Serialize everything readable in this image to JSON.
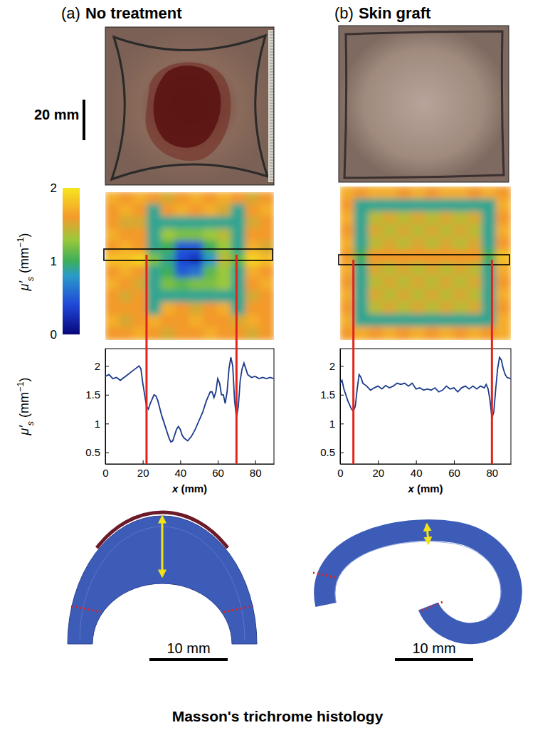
{
  "panels": [
    {
      "label": "(a)",
      "title": "No treatment"
    },
    {
      "label": "(b)",
      "title": "Skin graft"
    }
  ],
  "photo_scale_bar": "20 mm",
  "colorbar": {
    "label": {
      "symbol": "μ′",
      "sub": "s",
      "unit": " (mm",
      "sup": "−1",
      "end": ")"
    },
    "range": [
      0,
      2
    ],
    "ticks": [
      0,
      1,
      2
    ]
  },
  "heatmaps": [
    {
      "cells": [
        [
          1.7,
          1.6,
          1.7,
          1.6,
          1.5,
          1.6,
          1.7,
          1.6,
          1.7,
          1.6,
          1.5,
          1.6
        ],
        [
          1.6,
          1.7,
          1.6,
          0.9,
          1.6,
          1.7,
          1.6,
          1.7,
          1.5,
          0.9,
          1.6,
          1.7
        ],
        [
          1.6,
          1.5,
          1.5,
          0.9,
          0.9,
          0.9,
          0.9,
          0.9,
          0.9,
          0.9,
          1.5,
          1.6
        ],
        [
          1.7,
          1.6,
          1.6,
          0.9,
          1.3,
          1.2,
          1.2,
          1.3,
          1.4,
          0.9,
          1.6,
          1.6
        ],
        [
          1.6,
          1.7,
          1.6,
          0.9,
          1.0,
          0.5,
          0.5,
          1.0,
          1.3,
          0.9,
          1.7,
          1.5
        ],
        [
          1.8,
          1.8,
          1.9,
          1.2,
          0.9,
          0.4,
          0.3,
          0.8,
          1.4,
          1.1,
          1.9,
          1.8
        ],
        [
          1.6,
          1.7,
          1.6,
          0.9,
          1.0,
          0.5,
          0.6,
          1.1,
          1.3,
          0.9,
          1.7,
          1.6
        ],
        [
          1.7,
          1.6,
          1.5,
          0.9,
          1.2,
          1.1,
          1.2,
          1.2,
          1.3,
          0.9,
          1.6,
          1.7
        ],
        [
          1.6,
          1.5,
          1.6,
          0.9,
          0.9,
          0.9,
          0.9,
          0.9,
          0.9,
          0.9,
          1.5,
          1.6
        ],
        [
          1.6,
          1.6,
          1.6,
          0.9,
          1.7,
          1.6,
          1.5,
          1.6,
          1.7,
          0.9,
          1.6,
          1.6
        ],
        [
          1.7,
          1.5,
          1.6,
          1.7,
          1.6,
          1.6,
          1.7,
          1.6,
          1.6,
          1.5,
          1.7,
          1.6
        ],
        [
          1.6,
          1.6,
          1.7,
          1.6,
          1.5,
          1.6,
          1.6,
          1.7,
          1.6,
          1.6,
          1.5,
          1.6
        ]
      ]
    },
    {
      "cells": [
        [
          1.7,
          1.6,
          1.7,
          1.7,
          1.6,
          1.7,
          1.6,
          1.7,
          1.7,
          1.6,
          1.7,
          1.6
        ],
        [
          1.6,
          0.9,
          0.9,
          0.9,
          0.9,
          0.9,
          0.9,
          0.9,
          0.9,
          0.9,
          0.9,
          1.7
        ],
        [
          1.7,
          0.9,
          1.4,
          1.5,
          1.4,
          1.5,
          1.4,
          1.5,
          1.4,
          1.5,
          0.9,
          1.6
        ],
        [
          1.6,
          0.9,
          1.5,
          1.4,
          1.5,
          1.4,
          1.5,
          1.4,
          1.5,
          1.4,
          0.9,
          1.7
        ],
        [
          1.7,
          0.9,
          1.4,
          1.5,
          1.4,
          1.5,
          1.4,
          1.5,
          1.4,
          1.5,
          0.9,
          1.6
        ],
        [
          1.6,
          1.0,
          1.6,
          1.6,
          1.6,
          1.6,
          1.6,
          1.6,
          1.6,
          1.6,
          1.0,
          1.8
        ],
        [
          1.7,
          0.9,
          1.5,
          1.4,
          1.5,
          1.4,
          1.5,
          1.4,
          1.5,
          1.4,
          0.9,
          1.7
        ],
        [
          1.6,
          0.9,
          1.4,
          1.5,
          1.4,
          1.5,
          1.4,
          1.5,
          1.4,
          1.5,
          0.9,
          1.6
        ],
        [
          1.7,
          0.9,
          1.5,
          1.4,
          1.5,
          1.4,
          1.5,
          1.4,
          1.5,
          1.4,
          0.9,
          1.7
        ],
        [
          1.6,
          0.9,
          1.4,
          1.5,
          1.4,
          1.5,
          1.4,
          1.5,
          1.4,
          1.5,
          0.9,
          1.6
        ],
        [
          1.7,
          0.9,
          0.9,
          0.9,
          0.9,
          0.9,
          0.9,
          0.9,
          0.9,
          0.9,
          0.9,
          1.7
        ],
        [
          1.6,
          1.7,
          1.6,
          1.7,
          1.6,
          1.7,
          1.6,
          1.7,
          1.6,
          1.7,
          1.6,
          1.7
        ]
      ]
    }
  ],
  "chart_data": [
    {
      "type": "line",
      "x": [
        0,
        2,
        4,
        6,
        8,
        10,
        12,
        14,
        16,
        18,
        19,
        20,
        22,
        23,
        24,
        26,
        27,
        28,
        30,
        32,
        33,
        34,
        35,
        36,
        37,
        38,
        39,
        40,
        41,
        42,
        44,
        46,
        48,
        50,
        52,
        54,
        56,
        57,
        58,
        59,
        60,
        61,
        62,
        63,
        64,
        65,
        66,
        67,
        68,
        69,
        70,
        71,
        72,
        73,
        74,
        75,
        76,
        78,
        80,
        82,
        84,
        86,
        88,
        90
      ],
      "series": [
        {
          "color": "#1b3a8c",
          "values": [
            1.82,
            1.85,
            1.78,
            1.8,
            1.75,
            1.8,
            1.85,
            1.9,
            1.95,
            2.0,
            1.95,
            1.7,
            1.3,
            1.25,
            1.35,
            1.5,
            1.48,
            1.4,
            1.15,
            0.95,
            0.85,
            0.75,
            0.68,
            0.7,
            0.8,
            0.9,
            0.95,
            0.9,
            0.8,
            0.75,
            0.7,
            0.78,
            0.9,
            1.05,
            1.2,
            1.4,
            1.55,
            1.55,
            1.45,
            1.55,
            1.78,
            1.7,
            1.5,
            1.5,
            1.35,
            1.55,
            1.95,
            2.15,
            2.0,
            1.4,
            1.1,
            1.3,
            1.75,
            1.95,
            2.05,
            1.95,
            1.85,
            1.8,
            1.82,
            1.78,
            1.8,
            1.78,
            1.8,
            1.78
          ]
        }
      ],
      "xlim": [
        0,
        90
      ],
      "xticks": [
        0,
        20,
        40,
        60,
        80
      ],
      "ylim": [
        0.3,
        2.3
      ],
      "yticks": [
        0.5,
        1,
        1.5,
        2
      ],
      "xlabel": {
        "var": "x",
        "unit": " (mm)"
      },
      "ylabel": {
        "symbol": "μ′",
        "sub": "s",
        "unit": " (mm",
        "sup": "−1",
        "end": ")"
      },
      "x_markers": [
        22,
        70
      ]
    },
    {
      "type": "line",
      "x": [
        0,
        1,
        2,
        4,
        6,
        7,
        8,
        9,
        10,
        11,
        12,
        14,
        16,
        18,
        20,
        22,
        24,
        26,
        28,
        30,
        32,
        34,
        36,
        38,
        40,
        42,
        44,
        46,
        48,
        50,
        52,
        54,
        56,
        58,
        60,
        62,
        64,
        66,
        68,
        70,
        72,
        74,
        76,
        77,
        78,
        79,
        80,
        81,
        82,
        83,
        84,
        85,
        86,
        87,
        88,
        90
      ],
      "series": [
        {
          "color": "#1b3a8c",
          "values": [
            1.7,
            1.75,
            1.6,
            1.4,
            1.25,
            1.22,
            1.3,
            1.6,
            1.85,
            1.8,
            1.7,
            1.65,
            1.58,
            1.62,
            1.65,
            1.6,
            1.66,
            1.62,
            1.65,
            1.7,
            1.68,
            1.7,
            1.65,
            1.7,
            1.6,
            1.62,
            1.58,
            1.6,
            1.58,
            1.62,
            1.55,
            1.58,
            1.65,
            1.6,
            1.62,
            1.55,
            1.62,
            1.65,
            1.6,
            1.65,
            1.6,
            1.65,
            1.62,
            1.68,
            1.6,
            1.4,
            1.1,
            1.2,
            1.6,
            1.95,
            2.15,
            2.1,
            1.95,
            1.85,
            1.8,
            1.78
          ]
        }
      ],
      "xlim": [
        0,
        90
      ],
      "xticks": [
        0,
        20,
        40,
        60,
        80
      ],
      "ylim": [
        0.3,
        2.3
      ],
      "yticks": [
        0.5,
        1,
        1.5,
        2
      ],
      "xlabel": {
        "var": "x",
        "unit": " (mm)"
      },
      "x_markers": [
        7,
        80
      ]
    }
  ],
  "histology": {
    "scale_bars": [
      "10 mm",
      "10 mm"
    ],
    "caption": "Masson's trichrome histology"
  }
}
